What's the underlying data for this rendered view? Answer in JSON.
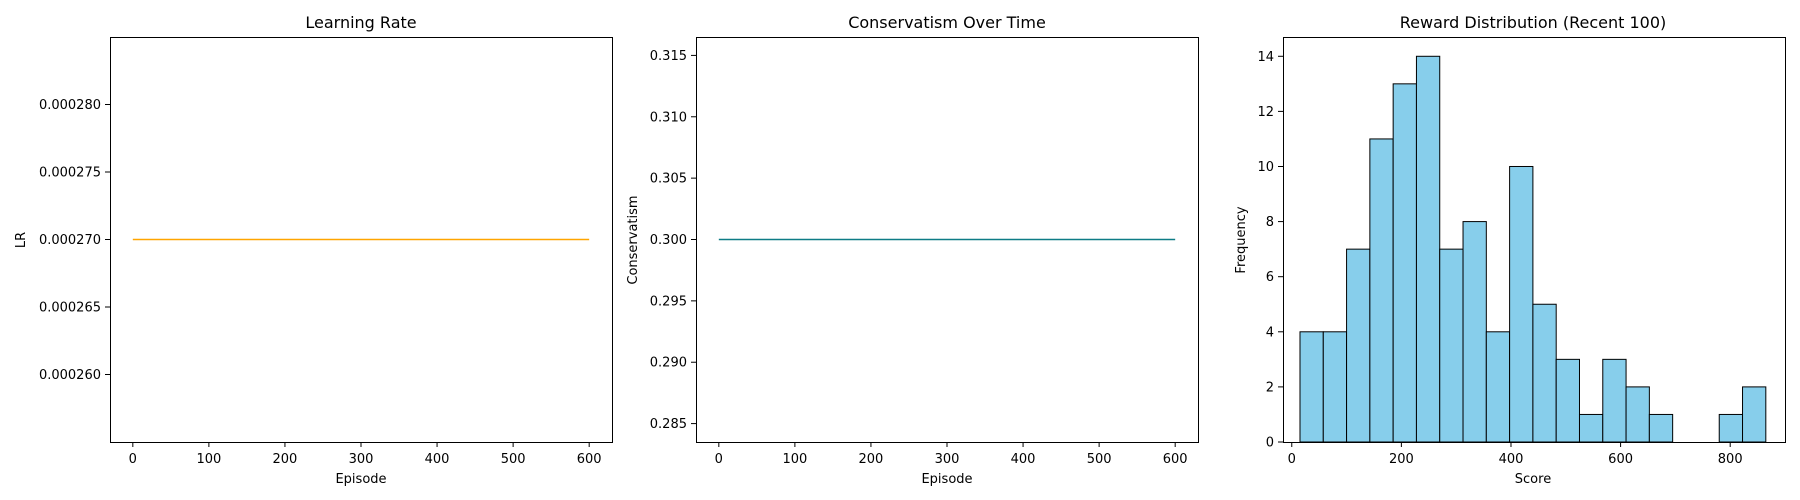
{
  "chart_data": [
    {
      "type": "line",
      "title": "Learning Rate",
      "xlabel": "Episode",
      "ylabel": "LR",
      "xlim": [
        -30,
        630
      ],
      "ylim": [
        0.000255,
        0.000285
      ],
      "xticks": [
        0,
        100,
        200,
        300,
        400,
        500,
        600
      ],
      "yticks": [
        0.00026,
        0.000265,
        0.00027,
        0.000275,
        0.00028
      ],
      "ytick_labels": [
        "0.000260",
        "0.000265",
        "0.000270",
        "0.000275",
        "0.000280"
      ],
      "grid": false,
      "series": [
        {
          "color": "#ffa500",
          "x": [
            0,
            600
          ],
          "y": [
            0.00027,
            0.00027
          ]
        }
      ]
    },
    {
      "type": "line",
      "title": "Conservatism Over Time",
      "xlabel": "Episode",
      "ylabel": "Conservatism",
      "xlim": [
        -30,
        630
      ],
      "ylim": [
        0.2835,
        0.3165
      ],
      "xticks": [
        0,
        100,
        200,
        300,
        400,
        500,
        600
      ],
      "yticks": [
        0.285,
        0.29,
        0.295,
        0.3,
        0.305,
        0.31,
        0.315
      ],
      "ytick_labels": [
        "0.285",
        "0.290",
        "0.295",
        "0.300",
        "0.305",
        "0.310",
        "0.315"
      ],
      "grid": false,
      "series": [
        {
          "color": "#0e7c86",
          "x": [
            0,
            600
          ],
          "y": [
            0.3,
            0.3
          ]
        }
      ]
    },
    {
      "type": "bar",
      "title": "Reward Distribution (Recent 100)",
      "xlabel": "Score",
      "ylabel": "Frequency",
      "xlim": [
        -16,
        900
      ],
      "ylim": [
        0,
        14.7
      ],
      "xticks": [
        0,
        200,
        400,
        600,
        800
      ],
      "yticks": [
        0,
        2,
        4,
        6,
        8,
        10,
        12,
        14
      ],
      "grid": false,
      "bar_color": "#87ceeb",
      "edge_color": "#000000",
      "bin_edges": [
        15,
        57.5,
        100,
        142.5,
        185,
        227.5,
        270,
        312.5,
        355,
        397.5,
        440,
        482.5,
        525,
        567.5,
        610,
        652.5,
        695,
        737.5,
        780,
        822.5,
        865
      ],
      "values": [
        4,
        4,
        7,
        11,
        13,
        14,
        7,
        8,
        4,
        10,
        5,
        3,
        1,
        3,
        2,
        1,
        0,
        0,
        1,
        2
      ]
    }
  ]
}
